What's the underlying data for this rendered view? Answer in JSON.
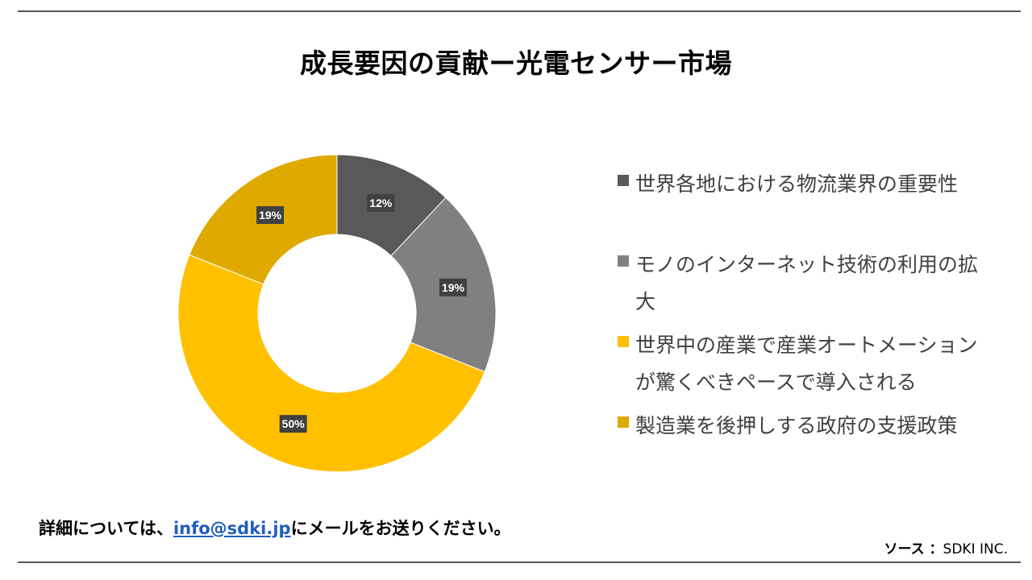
{
  "title": "成長要因の貢献ー光電センサー市場",
  "chart_data": {
    "type": "pie",
    "donut": true,
    "categories": [
      "世界各地における物流業界の重要性",
      "モノのインターネット技術の利用の拡大",
      "世界中の産業で産業オートメーションが驚くべきペースで導入される",
      "製造業を後押しする政府の支援政策"
    ],
    "values": [
      12,
      19,
      50,
      19
    ],
    "data_labels": [
      "12%",
      "19%",
      "50%",
      "19%"
    ],
    "colors": [
      "#595959",
      "#808080",
      "#FFC000",
      "#DFA900"
    ],
    "legend_position": "right"
  },
  "footer": {
    "prefix": "詳細については、",
    "email": "info@sdki.jp",
    "suffix": "にメールをお送りください。"
  },
  "source": {
    "label": "ソース ：",
    "value": "SDKI INC."
  }
}
